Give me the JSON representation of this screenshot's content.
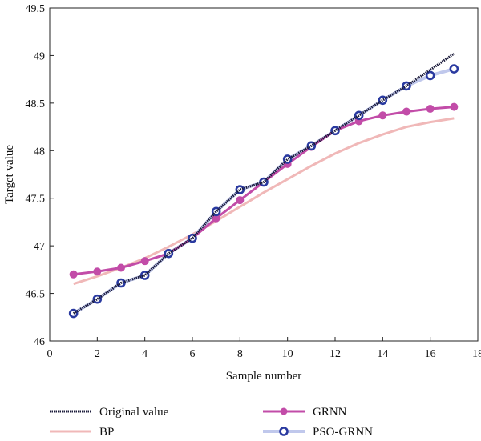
{
  "chart_data": {
    "type": "line",
    "xlabel": "Sample number",
    "ylabel": "Target value",
    "xlim": [
      0,
      18
    ],
    "ylim": [
      46,
      49.5
    ],
    "xticks": [
      "0",
      "2",
      "4",
      "6",
      "8",
      "10",
      "12",
      "14",
      "16",
      "18"
    ],
    "yticks": [
      "46",
      "46.5",
      "47",
      "47.5",
      "48",
      "48.5",
      "49",
      "49.5"
    ],
    "grid": false,
    "legend_position": "bottom",
    "x": [
      1,
      2,
      3,
      4,
      5,
      6,
      7,
      8,
      9,
      10,
      11,
      12,
      13,
      14,
      15,
      16,
      17
    ],
    "series": [
      {
        "name": "Original value",
        "color": "#1a1a3a",
        "style": "dotted-dark",
        "values": [
          46.29,
          46.44,
          46.61,
          46.69,
          46.92,
          47.08,
          47.36,
          47.59,
          47.67,
          47.91,
          48.05,
          48.21,
          48.37,
          48.53,
          48.68,
          48.85,
          49.02
        ]
      },
      {
        "name": "GRNN",
        "color": "#c24ca8",
        "style": "line-filled-marker",
        "values": [
          46.7,
          46.73,
          46.77,
          46.84,
          46.92,
          47.08,
          47.29,
          47.48,
          47.67,
          47.86,
          48.04,
          48.21,
          48.31,
          48.37,
          48.41,
          48.44,
          48.46
        ]
      },
      {
        "name": "BP",
        "color": "#f0b8b8",
        "style": "line",
        "values": [
          46.6,
          46.68,
          46.77,
          46.87,
          46.99,
          47.12,
          47.26,
          47.41,
          47.56,
          47.7,
          47.84,
          47.97,
          48.08,
          48.17,
          48.25,
          48.3,
          48.34
        ]
      },
      {
        "name": "PSO-GRNN",
        "color": "#2a3aa0",
        "line_color": "#c0c8ec",
        "style": "line-hollow-marker",
        "values": [
          46.29,
          46.44,
          46.61,
          46.69,
          46.92,
          47.08,
          47.36,
          47.59,
          47.67,
          47.91,
          48.05,
          48.21,
          48.37,
          48.53,
          48.68,
          48.79,
          48.86
        ]
      }
    ]
  }
}
